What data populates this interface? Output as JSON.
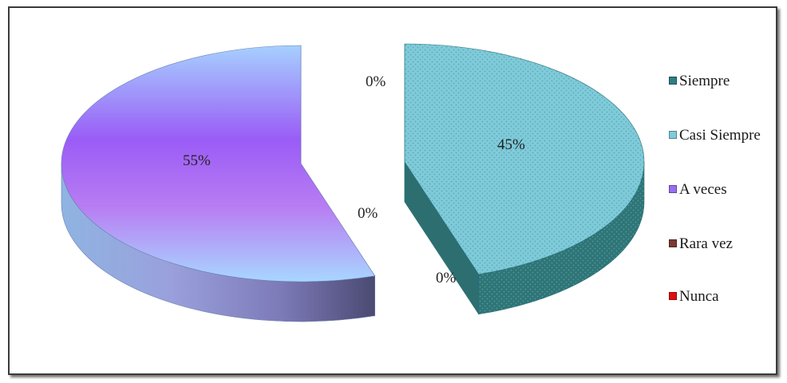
{
  "chart_data": {
    "type": "pie",
    "categories": [
      "Siempre",
      "Casi Siempre",
      "A veces",
      "Rara vez",
      "Nunca"
    ],
    "values": [
      0,
      45,
      55,
      0,
      0
    ],
    "data_labels": [
      "0%",
      "45%",
      "55%",
      "0%",
      "0%"
    ],
    "colors": [
      "#2f7d86",
      "#7fcbd9",
      "#9a6cf2",
      "#7a3a32",
      "#e01010"
    ],
    "legend_position": "right",
    "exploded": true,
    "three_d": true
  }
}
